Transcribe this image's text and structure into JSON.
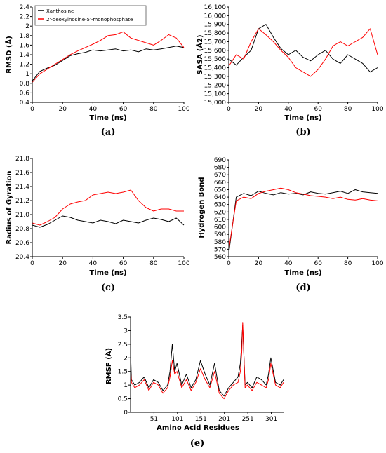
{
  "colors": {
    "xanthosine": "#000000",
    "deoxy": "#ff0000"
  },
  "legend": {
    "items": [
      "Xanthosine",
      "2'-deoxyinosine-5'-monophosphate"
    ]
  },
  "chart_data": [
    {
      "type": "line",
      "panel_label": "(a)",
      "xlabel": "Time (ns)",
      "ylabel": "RMSD (Å)",
      "xlim": [
        0,
        100
      ],
      "ylim": [
        0.4,
        2.4
      ],
      "xticks": [
        "0",
        "20",
        "40",
        "60",
        "80",
        "100"
      ],
      "yticks": [
        "0.4",
        "0.6",
        "0.8",
        "1",
        "1.2",
        "1.4",
        "1.6",
        "1.8",
        "2",
        "2.2",
        "2.4"
      ],
      "grid": false,
      "legend_position": "top-left",
      "series": [
        {
          "name": "Xanthosine",
          "x": [
            0,
            5,
            10,
            15,
            20,
            25,
            30,
            35,
            40,
            45,
            50,
            55,
            60,
            65,
            70,
            75,
            80,
            85,
            90,
            95,
            100
          ],
          "values": [
            0.85,
            1.05,
            1.12,
            1.18,
            1.28,
            1.38,
            1.42,
            1.45,
            1.5,
            1.48,
            1.5,
            1.52,
            1.48,
            1.5,
            1.46,
            1.52,
            1.5,
            1.52,
            1.55,
            1.58,
            1.55
          ]
        },
        {
          "name": "2'-deoxyinosine-5'-monophosphate",
          "x": [
            0,
            5,
            10,
            15,
            20,
            25,
            30,
            35,
            40,
            45,
            50,
            55,
            60,
            65,
            70,
            75,
            80,
            85,
            90,
            95,
            100
          ],
          "values": [
            0.82,
            1.0,
            1.1,
            1.2,
            1.3,
            1.4,
            1.48,
            1.55,
            1.62,
            1.7,
            1.8,
            1.82,
            1.88,
            1.75,
            1.7,
            1.65,
            1.6,
            1.7,
            1.82,
            1.75,
            1.55
          ]
        }
      ]
    },
    {
      "type": "line",
      "panel_label": "(b)",
      "xlabel": "Time (ns)",
      "ylabel": "SASA (Å2)",
      "xlim": [
        0,
        100
      ],
      "ylim": [
        15000,
        16100
      ],
      "xticks": [
        "0",
        "20",
        "40",
        "60",
        "80",
        "100"
      ],
      "yticks": [
        "15,000",
        "15,100",
        "15,200",
        "15,300",
        "15,400",
        "15,500",
        "15,600",
        "15,700",
        "15,800",
        "15,900",
        "16,000",
        "16,100"
      ],
      "grid": false,
      "series": [
        {
          "name": "Xanthosine",
          "x": [
            0,
            5,
            10,
            15,
            20,
            25,
            30,
            35,
            40,
            45,
            50,
            55,
            60,
            65,
            70,
            75,
            80,
            85,
            90,
            95,
            100
          ],
          "values": [
            15500,
            15430,
            15520,
            15600,
            15850,
            15900,
            15750,
            15620,
            15550,
            15600,
            15520,
            15480,
            15550,
            15600,
            15500,
            15450,
            15550,
            15500,
            15450,
            15350,
            15400
          ]
        },
        {
          "name": "2'-deoxyinosine-5'-monophosphate",
          "x": [
            0,
            5,
            10,
            15,
            20,
            25,
            30,
            35,
            40,
            45,
            50,
            55,
            60,
            65,
            70,
            75,
            80,
            85,
            90,
            95,
            100
          ],
          "values": [
            15420,
            15550,
            15500,
            15700,
            15850,
            15780,
            15700,
            15600,
            15520,
            15400,
            15350,
            15300,
            15380,
            15500,
            15650,
            15700,
            15650,
            15700,
            15750,
            15850,
            15550
          ]
        }
      ]
    },
    {
      "type": "line",
      "panel_label": "(c)",
      "xlabel": "Time (ns)",
      "ylabel": "Radius of Gyration",
      "xlim": [
        0,
        100
      ],
      "ylim": [
        20.4,
        21.8
      ],
      "xticks": [
        "0",
        "20",
        "40",
        "60",
        "80",
        "100"
      ],
      "yticks": [
        "20.4",
        "20.6",
        "20.8",
        "21.0",
        "21.2",
        "21.4",
        "21.6",
        "21.8"
      ],
      "grid": false,
      "series": [
        {
          "name": "Xanthosine",
          "x": [
            0,
            5,
            10,
            15,
            20,
            25,
            30,
            35,
            40,
            45,
            50,
            55,
            60,
            65,
            70,
            75,
            80,
            85,
            90,
            95,
            100
          ],
          "values": [
            20.85,
            20.82,
            20.86,
            20.92,
            20.98,
            20.96,
            20.92,
            20.9,
            20.88,
            20.92,
            20.9,
            20.87,
            20.92,
            20.9,
            20.88,
            20.92,
            20.95,
            20.93,
            20.9,
            20.95,
            20.85
          ]
        },
        {
          "name": "2'-deoxyinosine-5'-monophosphate",
          "x": [
            0,
            5,
            10,
            15,
            20,
            25,
            30,
            35,
            40,
            45,
            50,
            55,
            60,
            65,
            70,
            75,
            80,
            85,
            90,
            95,
            100
          ],
          "values": [
            20.88,
            20.85,
            20.9,
            20.96,
            21.08,
            21.15,
            21.18,
            21.2,
            21.28,
            21.3,
            21.32,
            21.3,
            21.32,
            21.35,
            21.2,
            21.1,
            21.05,
            21.08,
            21.08,
            21.05,
            21.05
          ]
        }
      ]
    },
    {
      "type": "line",
      "panel_label": "(d)",
      "xlabel": "Time (ns)",
      "ylabel": "Hydrogen Bond",
      "xlim": [
        0,
        100
      ],
      "ylim": [
        560,
        690
      ],
      "xticks": [
        "0",
        "20",
        "40",
        "60",
        "80",
        "100"
      ],
      "yticks": [
        "560",
        "570",
        "580",
        "590",
        "600",
        "610",
        "620",
        "630",
        "640",
        "650",
        "660",
        "670",
        "680",
        "690"
      ],
      "grid": false,
      "series": [
        {
          "name": "Xanthosine",
          "x": [
            0,
            5,
            10,
            15,
            20,
            25,
            30,
            35,
            40,
            45,
            50,
            55,
            60,
            65,
            70,
            75,
            80,
            85,
            90,
            95,
            100
          ],
          "values": [
            565,
            640,
            645,
            642,
            648,
            645,
            643,
            646,
            644,
            645,
            643,
            647,
            645,
            644,
            646,
            648,
            645,
            650,
            647,
            646,
            645
          ]
        },
        {
          "name": "2'-deoxyinosine-5'-monophosphate",
          "x": [
            0,
            5,
            10,
            15,
            20,
            25,
            30,
            35,
            40,
            45,
            50,
            55,
            60,
            65,
            70,
            75,
            80,
            85,
            90,
            95,
            100
          ],
          "values": [
            570,
            635,
            640,
            638,
            645,
            648,
            650,
            652,
            650,
            646,
            644,
            642,
            641,
            640,
            638,
            640,
            637,
            636,
            638,
            636,
            635
          ]
        }
      ]
    },
    {
      "type": "line",
      "panel_label": "(e)",
      "xlabel": "Amino Acid Residues",
      "ylabel": "RMSF (Å)",
      "xlim": [
        1,
        327
      ],
      "ylim": [
        0,
        3.5
      ],
      "xticks": [
        "51",
        "101",
        "151",
        "201",
        "251",
        "301"
      ],
      "yticks": [
        "0",
        "0.5",
        "1",
        "1.5",
        "2",
        "2.5",
        "3",
        "3.5"
      ],
      "grid": false,
      "series": [
        {
          "name": "Xanthosine",
          "x": [
            1,
            3,
            10,
            20,
            30,
            40,
            50,
            60,
            70,
            80,
            85,
            90,
            95,
            100,
            110,
            120,
            130,
            140,
            150,
            160,
            170,
            180,
            190,
            200,
            210,
            220,
            230,
            235,
            238,
            240,
            245,
            250,
            260,
            270,
            280,
            290,
            295,
            300,
            310,
            320,
            327
          ],
          "values": [
            2.2,
            1.2,
            1.0,
            1.1,
            1.3,
            0.9,
            1.2,
            1.1,
            0.8,
            1.0,
            1.5,
            2.5,
            1.5,
            1.8,
            1.0,
            1.4,
            0.9,
            1.2,
            1.9,
            1.4,
            1.0,
            1.8,
            0.8,
            0.6,
            0.9,
            1.1,
            1.3,
            1.8,
            2.6,
            3.2,
            1.0,
            1.1,
            0.9,
            1.3,
            1.2,
            1.0,
            1.4,
            2.0,
            1.1,
            1.0,
            1.2
          ]
        },
        {
          "name": "2'-deoxyinosine-5'-monophosphate",
          "x": [
            1,
            3,
            10,
            20,
            30,
            40,
            50,
            60,
            70,
            80,
            85,
            90,
            95,
            100,
            110,
            120,
            130,
            140,
            150,
            160,
            170,
            180,
            190,
            200,
            210,
            220,
            230,
            235,
            238,
            240,
            245,
            250,
            260,
            270,
            280,
            290,
            295,
            300,
            310,
            320,
            327
          ],
          "values": [
            1.6,
            1.1,
            0.9,
            1.0,
            1.2,
            0.8,
            1.1,
            1.0,
            0.7,
            0.9,
            1.3,
            1.9,
            1.4,
            1.5,
            0.9,
            1.2,
            0.8,
            1.1,
            1.6,
            1.2,
            0.9,
            1.5,
            0.7,
            0.5,
            0.8,
            1.0,
            1.1,
            1.5,
            2.2,
            3.3,
            0.9,
            1.0,
            0.8,
            1.1,
            1.0,
            0.9,
            1.2,
            1.8,
            1.0,
            0.9,
            1.1
          ]
        }
      ]
    }
  ]
}
